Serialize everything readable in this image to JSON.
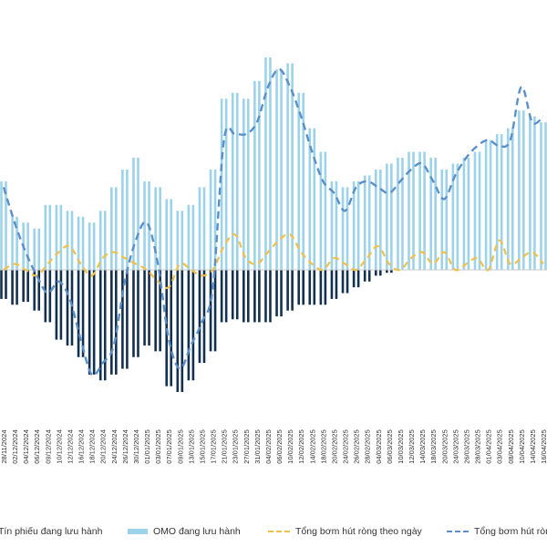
{
  "chart_data": {
    "type": "bar",
    "title": "",
    "xlabel": "",
    "ylabel": "",
    "grid": false,
    "legend_position": "bottom",
    "colors": {
      "tin_phieu": "#14304f",
      "omo": "#9dd3ea",
      "daily_line": "#f1c04a",
      "cum_line": "#5b8fc9",
      "axis": "#c8c8c8",
      "tick_text": "#333333"
    },
    "categories": [
      "28/11/2024",
      "02/12/2024",
      "04/12/2024",
      "06/12/2024",
      "09/12/2024",
      "10/12/2024",
      "12/12/2024",
      "16/12/2024",
      "18/12/2024",
      "20/12/2024",
      "24/12/2024",
      "26/12/2024",
      "30/12/2024",
      "01/01/2025",
      "03/01/2025",
      "07/01/2025",
      "09/01/2025",
      "13/01/2025",
      "15/01/2025",
      "17/01/2025",
      "21/01/2025",
      "23/01/2025",
      "27/01/2025",
      "31/01/2025",
      "04/02/2025",
      "06/02/2025",
      "10/02/2025",
      "12/02/2025",
      "14/02/2025",
      "18/02/2025",
      "20/02/2025",
      "24/02/2025",
      "26/02/2025",
      "28/02/2025",
      "04/03/2025",
      "06/03/2025",
      "10/03/2025",
      "12/03/2025",
      "14/03/2025",
      "18/03/2025",
      "20/03/2025",
      "24/03/2025",
      "26/03/2025",
      "28/03/2025",
      "01/04/2025",
      "03/04/2025",
      "08/04/2025",
      "10/04/2025",
      "14/04/2025",
      "16/04/2025"
    ],
    "series": [
      {
        "name": "Tín phiếu đang lưu hành",
        "kind": "bar",
        "values": [
          -10,
          -12,
          -11,
          -14,
          -18,
          -24,
          -26,
          -30,
          -36,
          -38,
          -36,
          -34,
          -30,
          -26,
          -28,
          -40,
          -42,
          -38,
          -32,
          -28,
          -18,
          -17,
          -18,
          -18,
          -18,
          -16,
          -14,
          -12,
          -12,
          -12,
          -10,
          -8,
          -6,
          -4,
          -2,
          -1,
          0,
          0,
          0,
          0,
          0,
          0,
          0,
          0,
          0,
          0,
          0,
          0,
          0,
          0
        ]
      },
      {
        "name": "OMO đang lưu hành",
        "kind": "bar",
        "values": [
          30,
          18,
          16,
          14,
          22,
          22,
          20,
          18,
          16,
          20,
          28,
          34,
          38,
          30,
          28,
          24,
          20,
          22,
          28,
          34,
          58,
          60,
          58,
          64,
          72,
          68,
          70,
          60,
          48,
          40,
          30,
          28,
          30,
          32,
          34,
          36,
          38,
          40,
          40,
          38,
          34,
          36,
          38,
          40,
          44,
          46,
          48,
          54,
          52,
          50
        ]
      },
      {
        "name": "Tổng bơm hút ròng theo ngày",
        "kind": "line",
        "values": [
          0,
          2,
          0,
          -2,
          2,
          6,
          8,
          2,
          -2,
          4,
          6,
          4,
          2,
          0,
          -4,
          -6,
          2,
          0,
          -2,
          0,
          8,
          12,
          4,
          2,
          6,
          10,
          12,
          6,
          2,
          0,
          4,
          2,
          0,
          4,
          8,
          2,
          0,
          4,
          6,
          2,
          6,
          0,
          2,
          4,
          0,
          10,
          2,
          4,
          6,
          2
        ]
      },
      {
        "name": "Tổng bơm hút ròng",
        "kind": "line",
        "values": [
          28,
          16,
          6,
          -2,
          -8,
          -4,
          -10,
          -24,
          -36,
          -32,
          -26,
          -4,
          10,
          16,
          2,
          -24,
          -34,
          -26,
          -18,
          -6,
          44,
          46,
          46,
          50,
          62,
          68,
          62,
          52,
          40,
          30,
          26,
          20,
          28,
          30,
          28,
          26,
          30,
          34,
          36,
          30,
          24,
          32,
          38,
          42,
          44,
          42,
          44,
          62,
          50,
          52
        ]
      }
    ],
    "ylim": [
      -42,
      76
    ]
  },
  "legend": [
    {
      "label": "Tín phiếu đang lưu hành"
    },
    {
      "label": "OMO đang lưu hành"
    },
    {
      "label": "Tổng bơm hút ròng theo ngày"
    },
    {
      "label": "Tổng bơm hút ròng"
    }
  ]
}
